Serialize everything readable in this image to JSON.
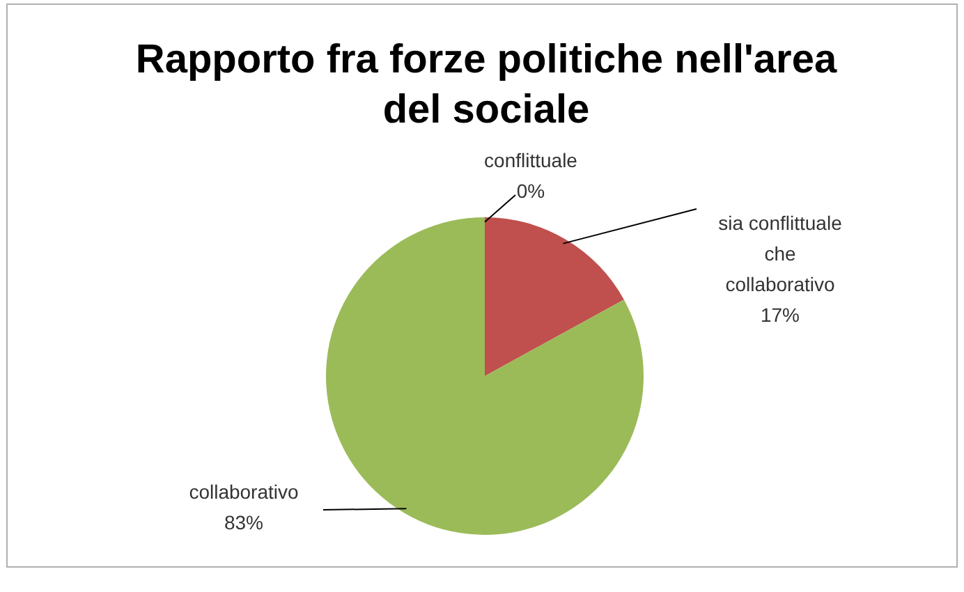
{
  "chart_data": {
    "type": "pie",
    "title": "Rapporto fra forze politiche nell'area del sociale",
    "categories": [
      "conflittuale",
      "sia conflittuale che collaborativo",
      "collaborativo"
    ],
    "values": [
      0,
      17,
      83
    ],
    "value_labels": [
      "0%",
      "17%",
      "83%"
    ],
    "colors": [
      "#4f81bd",
      "#c0504d",
      "#9bbb59"
    ]
  }
}
